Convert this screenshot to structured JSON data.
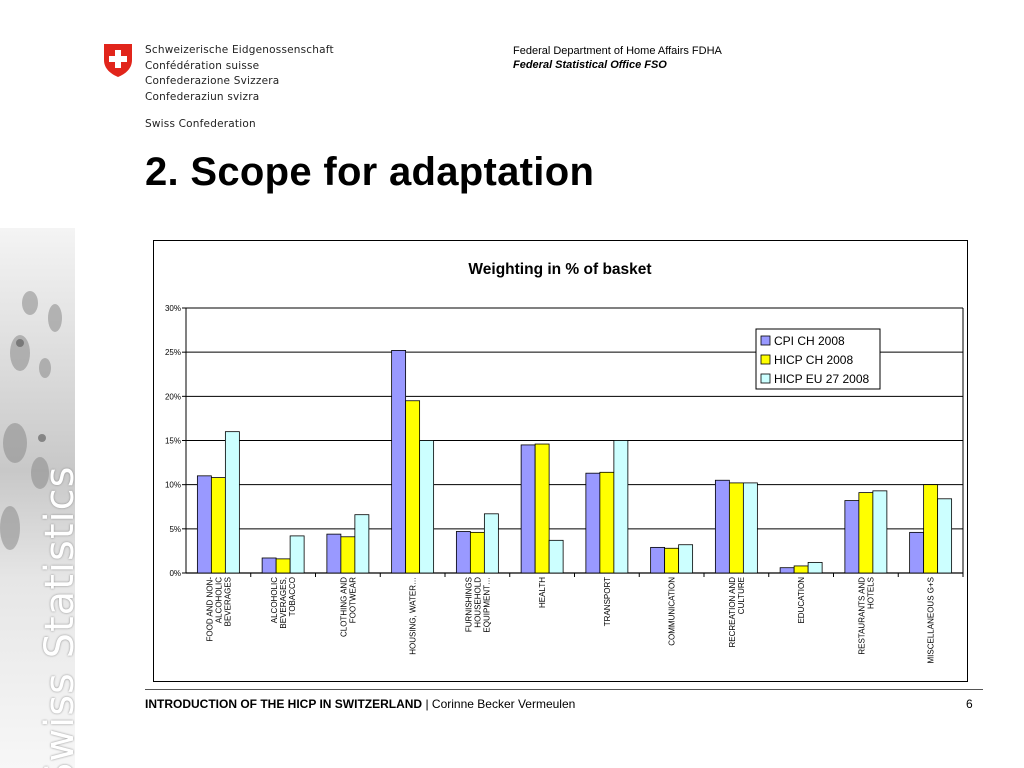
{
  "header": {
    "confederation_names": [
      "Schweizerische Eidgenossenschaft",
      "Confédération suisse",
      "Confederazione Svizzera",
      "Confederaziun svizra"
    ],
    "swiss_confederation": "Swiss Confederation",
    "department": "Federal Department of Home Affairs FDHA",
    "office": "Federal Statistical Office FSO",
    "flag_color": "#e1251b"
  },
  "sidebar": {
    "vertical_text": "Swiss Statistics"
  },
  "slide": {
    "title": "2. Scope for adaptation"
  },
  "chart_data": {
    "type": "bar",
    "title": "Weighting in % of basket",
    "xlabel": "",
    "ylabel": "",
    "ylim": [
      0,
      30
    ],
    "yticks": [
      "0%",
      "5%",
      "10%",
      "15%",
      "20%",
      "25%",
      "30%"
    ],
    "grid": true,
    "legend_position": "top-right",
    "categories": [
      "FOOD AND NON-ALCOHOLIC BEVERAGES",
      "ALCOHOLIC BEVERAGES, TOBACCO",
      "CLOTHING AND FOOTWEAR",
      "HOUSING, WATER…",
      "FURNISHINGS HOUSEHOLD EQUIPMENT…",
      "HEALTH",
      "TRANSPORT",
      "COMMUNICATION",
      "RECREATION AND CULTURE",
      "EDUCATION",
      "RESTAURANTS AND HOTELS",
      "MISCELLANEOUS G+S"
    ],
    "category_label_lines": [
      [
        "FOOD AND NON-",
        "ALCOHOLIC",
        "BEVERAGES"
      ],
      [
        "ALCOHOLIC",
        "BEVERAGES,",
        "TOBACCO"
      ],
      [
        "CLOTHING AND",
        "FOOTWEAR"
      ],
      [
        "HOUSING, WATER…"
      ],
      [
        "FURNISHINGS",
        "HOUSEHOLD",
        "EQUIPMENT…"
      ],
      [
        "HEALTH"
      ],
      [
        "TRANSPORT"
      ],
      [
        "COMMUNICATION"
      ],
      [
        "RECREATION AND",
        "CULTURE"
      ],
      [
        "EDUCATION"
      ],
      [
        "RESTAURANTS AND",
        "HOTELS"
      ],
      [
        "MISCELLANEOUS G+S"
      ]
    ],
    "series": [
      {
        "name": "CPI CH 2008",
        "color": "#9999ff",
        "values": [
          11.0,
          1.7,
          4.4,
          25.2,
          4.7,
          14.5,
          11.3,
          2.9,
          10.5,
          0.6,
          8.2,
          4.6
        ]
      },
      {
        "name": "HICP CH 2008",
        "color": "#ffff00",
        "values": [
          10.8,
          1.6,
          4.1,
          19.5,
          4.6,
          14.6,
          11.4,
          2.8,
          10.2,
          0.8,
          9.1,
          10.0
        ]
      },
      {
        "name": "HICP EU 27 2008",
        "color": "#ccffff",
        "values": [
          16.0,
          4.2,
          6.6,
          15.0,
          6.7,
          3.7,
          15.0,
          3.2,
          10.2,
          1.2,
          9.3,
          8.4
        ]
      }
    ]
  },
  "footer": {
    "title": "INTRODUCTION OF THE HICP IN SWITZERLAND",
    "separator": " | ",
    "author": "Corinne Becker Vermeulen",
    "page": "6"
  }
}
